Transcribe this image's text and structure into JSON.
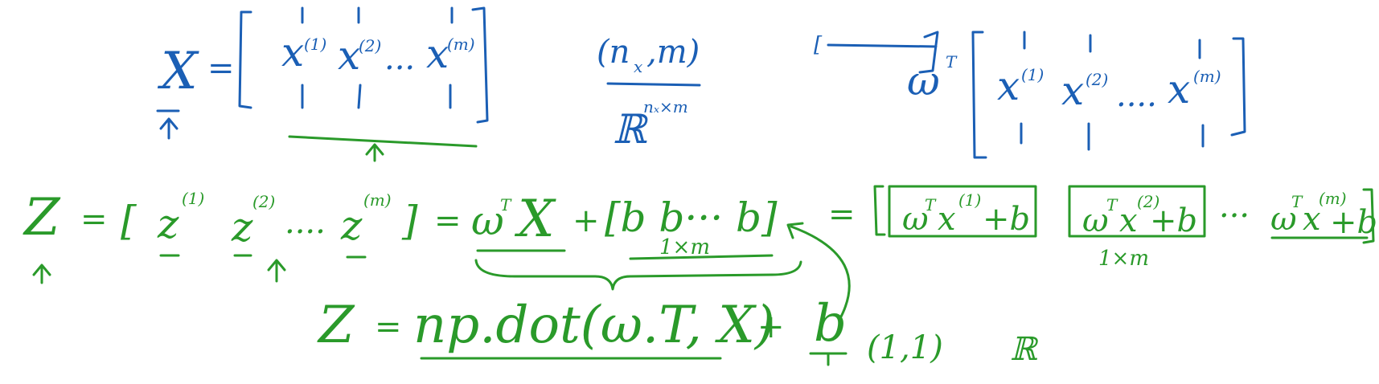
{
  "colors": {
    "blue": "#1b5fb5",
    "green": "#2a9a2a",
    "background": "#ffffff"
  },
  "x_matrix": {
    "lhs": "X",
    "eq": "=",
    "col1": "x",
    "sup1": "(1)",
    "col2": "x",
    "sup2": "(2)",
    "dots": "...",
    "col3": "x",
    "sup3": "(m)"
  },
  "shape": {
    "dims": "(n",
    "dims_sub": "x",
    "dims_end": ",m)",
    "real": "ℝ",
    "real_sup": "nₓ×m"
  },
  "wt_matrix": {
    "left": "[",
    "w": "ω",
    "t": "T",
    "col1": "x",
    "sup1": "(1)",
    "col2": "x",
    "sup2": "(2)",
    "dots": "....",
    "col3": "x",
    "sup3": "(m)"
  },
  "z_eq": {
    "z": "Z",
    "eq": "=",
    "lb": "[",
    "z1": "z",
    "s1": "(1)",
    "z2": "z",
    "s2": "(2)",
    "dots": "....",
    "z3": "z",
    "s3": "(m)",
    "rb": "]",
    "eq2": "=",
    "w": "ω",
    "t": "T",
    "x": "X",
    "plus": "+",
    "bvec": "[b  b···  b]",
    "bvec_dim": "1×m",
    "eq3": "=",
    "e1_w": "ω",
    "e1_t": "T",
    "e1_x": "x",
    "e1_s": "(1)",
    "e1_b": "+b",
    "e2_w": "ω",
    "e2_t": "T",
    "e2_x": "x",
    "e2_s": "(2)",
    "e2_b": "+b",
    "e_dots": "···",
    "e3_w": "ω",
    "e3_t": "T",
    "e3_x": "x",
    "e3_s": "(m)",
    "e3_b": "+b",
    "result_dim": "1×m"
  },
  "code_line": {
    "z": "Z",
    "eq": "=",
    "expr": "np.dot(ω.T, X)",
    "plus": "+",
    "b": "b",
    "shape": "(1,1)",
    "real": "ℝ"
  }
}
